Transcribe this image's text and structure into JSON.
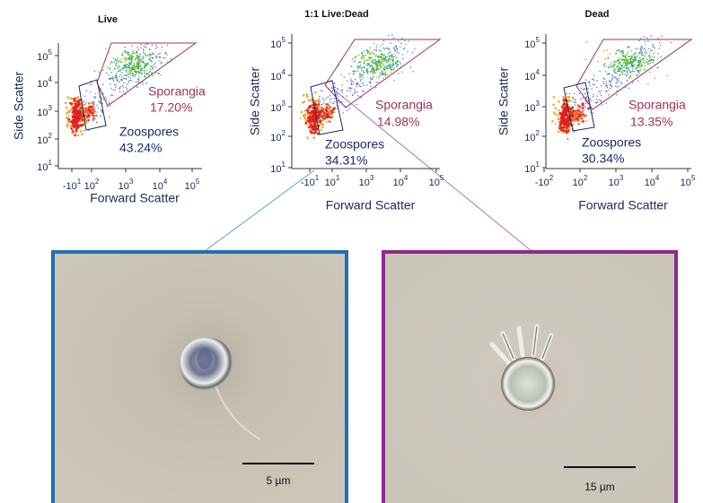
{
  "plots": [
    {
      "title": "Live",
      "y_label": "Side Scatter",
      "x_label": "Forward Scatter",
      "yticks": [
        {
          "base": "10",
          "exp": "1"
        },
        {
          "base": "10",
          "exp": "2"
        },
        {
          "base": "10",
          "exp": "3"
        },
        {
          "base": "10",
          "exp": "4"
        },
        {
          "base": "10",
          "exp": "5"
        }
      ],
      "xticks": [
        {
          "base": "-10",
          "exp": "1"
        },
        {
          "base": "10",
          "exp": "2"
        },
        {
          "base": "10",
          "exp": "3"
        },
        {
          "base": "10",
          "exp": "4"
        },
        {
          "base": "10",
          "exp": "5"
        }
      ],
      "gates": {
        "sporangia": {
          "name": "Sporangia",
          "percent": "17.20%"
        },
        "zoospores": {
          "name": "Zoospores",
          "percent": "43.24%"
        }
      }
    },
    {
      "title": "1:1 Live:Dead",
      "y_label": "Side Scatter",
      "x_label": "Forward Scatter",
      "yticks": [
        {
          "base": "10",
          "exp": "1"
        },
        {
          "base": "10",
          "exp": "2"
        },
        {
          "base": "10",
          "exp": "3"
        },
        {
          "base": "10",
          "exp": "4"
        },
        {
          "base": "10",
          "exp": "5"
        }
      ],
      "xticks": [
        {
          "base": "-10",
          "exp": "1"
        },
        {
          "base": "10",
          "exp": "1"
        },
        {
          "base": "10",
          "exp": "3"
        },
        {
          "base": "10",
          "exp": "4"
        },
        {
          "base": "10",
          "exp": "5"
        }
      ],
      "gates": {
        "sporangia": {
          "name": "Sporangia",
          "percent": "14.98%"
        },
        "zoospores": {
          "name": "Zoospores",
          "percent": "34.31%"
        }
      }
    },
    {
      "title": "Dead",
      "y_label": "Side Scatter",
      "x_label": "Forward Scatter",
      "yticks": [
        {
          "base": "10",
          "exp": "1"
        },
        {
          "base": "10",
          "exp": "2"
        },
        {
          "base": "10",
          "exp": "3"
        },
        {
          "base": "10",
          "exp": "4"
        },
        {
          "base": "10",
          "exp": "5"
        }
      ],
      "xticks": [
        {
          "base": "-10",
          "exp": "2"
        },
        {
          "base": "10",
          "exp": "2"
        },
        {
          "base": "10",
          "exp": "3"
        },
        {
          "base": "10",
          "exp": "4"
        },
        {
          "base": "10",
          "exp": "5"
        }
      ],
      "gates": {
        "sporangia": {
          "name": "Sporangia",
          "percent": "13.35%"
        },
        "zoospores": {
          "name": "Zoospores",
          "percent": "30.34%"
        }
      }
    }
  ],
  "micrographs": [
    {
      "scale_bar": "5 µm"
    },
    {
      "scale_bar": "15 µm"
    }
  ]
}
